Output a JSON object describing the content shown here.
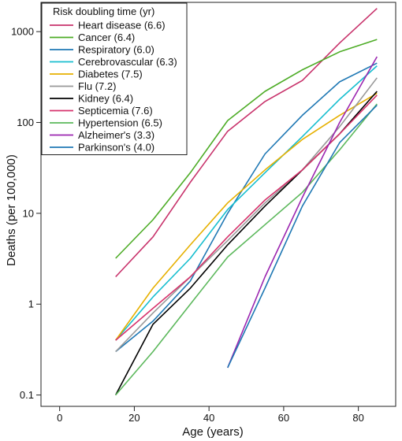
{
  "chart_data": {
    "type": "line",
    "title": "",
    "xlabel": "Age (years)",
    "ylabel": "Deaths (per 100,000)",
    "xlim": [
      -5,
      90
    ],
    "ylim": [
      0.075,
      2100
    ],
    "y_scale": "log",
    "grid": false,
    "legend_position": "top-left",
    "legend_title": "Risk doubling time (yr)",
    "x_ticks": [
      {
        "value": 0,
        "label": "0"
      },
      {
        "value": 20,
        "label": "20"
      },
      {
        "value": 40,
        "label": "40"
      },
      {
        "value": 60,
        "label": "60"
      },
      {
        "value": 80,
        "label": "80"
      }
    ],
    "y_ticks": [
      {
        "value": 0.1,
        "label": "0.1"
      },
      {
        "value": 1,
        "label": "1"
      },
      {
        "value": 10,
        "label": "10"
      },
      {
        "value": 100,
        "label": "100"
      },
      {
        "value": 1000,
        "label": "1000"
      }
    ],
    "series": [
      {
        "name": "Heart disease (6.6)",
        "color": "#c8326b",
        "x": [
          15,
          25,
          35,
          45,
          55,
          65,
          75,
          85
        ],
        "y": [
          2.0,
          5.5,
          22,
          80,
          170,
          290,
          750,
          1800
        ]
      },
      {
        "name": "Cancer (6.4)",
        "color": "#4dac26",
        "x": [
          15,
          25,
          35,
          45,
          55,
          65,
          75,
          85
        ],
        "y": [
          3.2,
          8.5,
          28,
          105,
          220,
          380,
          600,
          820
        ]
      },
      {
        "name": "Respiratory (6.0)",
        "color": "#1f78b4",
        "x": [
          15,
          25,
          35,
          45,
          55,
          65,
          75,
          85
        ],
        "y": [
          0.3,
          0.65,
          1.8,
          10,
          45,
          120,
          280,
          450
        ]
      },
      {
        "name": "Cerebrovascular (6.3)",
        "color": "#17becf",
        "x": [
          15,
          25,
          35,
          45,
          55,
          65,
          75,
          85
        ],
        "y": [
          0.4,
          1.2,
          3.2,
          11,
          28,
          70,
          180,
          420
        ]
      },
      {
        "name": "Diabetes (7.5)",
        "color": "#e6b000",
        "x": [
          15,
          25,
          35,
          45,
          55,
          65,
          75,
          85
        ],
        "y": [
          0.4,
          1.5,
          4.5,
          13,
          30,
          65,
          120,
          210
        ]
      },
      {
        "name": "Flu (7.2)",
        "color": "#999999",
        "x": [
          15,
          25,
          35,
          45,
          55,
          65,
          75,
          85
        ],
        "y": [
          0.3,
          0.8,
          2.0,
          5.0,
          13,
          30,
          90,
          310
        ]
      },
      {
        "name": "Kidney (6.4)",
        "color": "#000000",
        "x": [
          15,
          25,
          35,
          45,
          55,
          65,
          75,
          85
        ],
        "y": [
          0.1,
          0.6,
          1.5,
          4.5,
          12,
          30,
          75,
          220
        ]
      },
      {
        "name": "Septicemia (7.6)",
        "color": "#d6336c",
        "x": [
          15,
          25,
          35,
          45,
          55,
          65,
          75,
          85
        ],
        "y": [
          0.4,
          0.9,
          2.0,
          5.5,
          14,
          30,
          75,
          200
        ]
      },
      {
        "name": "Hypertension (6.5)",
        "color": "#5cb85c",
        "x": [
          15,
          25,
          35,
          45,
          55,
          65,
          75,
          85
        ],
        "y": [
          0.1,
          0.3,
          1.0,
          3.3,
          7.5,
          17,
          50,
          160
        ]
      },
      {
        "name": "Alzheimer's (3.3)",
        "color": "#9c27b0",
        "x": [
          45,
          55,
          65,
          75,
          85
        ],
        "y": [
          0.2,
          2.0,
          15,
          100,
          530
        ]
      },
      {
        "name": "Parkinson's (4.0)",
        "color": "#1f78b4",
        "x": [
          45,
          55,
          65,
          75,
          85
        ],
        "y": [
          0.2,
          1.5,
          12,
          60,
          155
        ]
      }
    ]
  }
}
